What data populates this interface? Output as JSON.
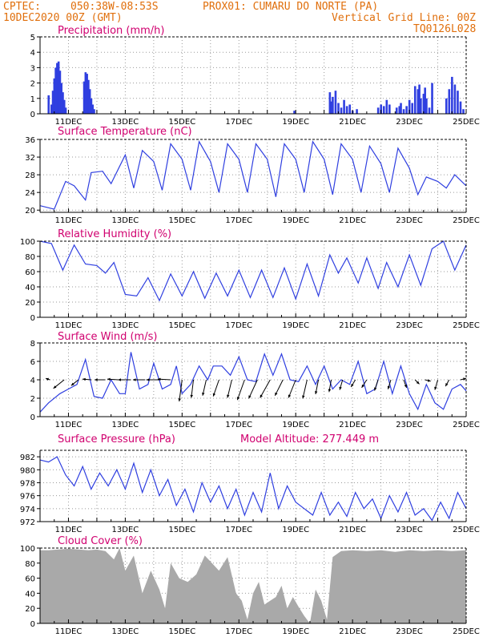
{
  "header": {
    "line1_left": "CPTEC:",
    "coords": "050:38W-08:53S",
    "station": "PROX01: CUMARU DO NORTE (PA)",
    "date": "10DEC2020 00Z (GMT)",
    "grid_note": "Vertical Grid Line: 00Z",
    "run_code": "TQ0126L028"
  },
  "colors": {
    "header_text": "#e06f0c",
    "title_text": "#d0006f",
    "series_line": "#2f3fe0",
    "cloud_fill": "#a9a9a9"
  },
  "x_axis": {
    "start_label_day": 10,
    "days": 15,
    "tick_labels": [
      "11DEC",
      "13DEC",
      "15DEC",
      "17DEC",
      "19DEC",
      "21DEC",
      "23DEC",
      "25DEC"
    ],
    "tick_days": [
      11,
      13,
      15,
      17,
      19,
      21,
      23,
      25
    ]
  },
  "chart_data": [
    {
      "type": "bar",
      "title": "Precipitation (mm/h)",
      "ylim": [
        0,
        5
      ],
      "yticks": [
        0,
        1,
        2,
        3,
        4,
        5
      ],
      "x": [
        10.3,
        10.4,
        10.45,
        10.5,
        10.55,
        10.6,
        10.65,
        10.7,
        10.75,
        10.8,
        10.85,
        10.9,
        11.55,
        11.6,
        11.65,
        11.7,
        11.75,
        11.8,
        11.85,
        11.9,
        18.95,
        20.2,
        20.25,
        20.3,
        20.4,
        20.5,
        20.6,
        20.7,
        20.8,
        20.9,
        21.0,
        21.15,
        21.9,
        22.0,
        22.1,
        22.2,
        22.3,
        22.55,
        22.65,
        22.7,
        22.8,
        22.9,
        23.0,
        23.1,
        23.2,
        23.3,
        23.35,
        23.4,
        23.5,
        23.55,
        23.6,
        23.7,
        23.8,
        24.3,
        24.4,
        24.5,
        24.6,
        24.7,
        24.8,
        24.9
      ],
      "values": [
        1.2,
        0.6,
        1.5,
        2.3,
        3.0,
        3.3,
        3.4,
        2.8,
        2.0,
        1.4,
        0.9,
        0.4,
        2.1,
        2.7,
        2.6,
        2.2,
        1.6,
        1.0,
        0.6,
        0.3,
        0.2,
        1.4,
        0.8,
        1.1,
        1.5,
        0.7,
        0.4,
        0.9,
        0.5,
        0.6,
        0.2,
        0.3,
        0.4,
        0.6,
        0.5,
        0.9,
        0.6,
        0.4,
        0.5,
        0.7,
        0.3,
        0.5,
        0.9,
        0.7,
        1.8,
        1.6,
        1.9,
        1.0,
        1.3,
        1.7,
        1.0,
        0.4,
        2.0,
        1.0,
        1.6,
        2.4,
        1.9,
        1.5,
        0.8,
        0.3
      ]
    },
    {
      "type": "line",
      "title": "Surface Temperature (nC)",
      "ylim": [
        19.5,
        36
      ],
      "yticks": [
        20,
        24,
        28,
        32,
        36
      ],
      "x": [
        10.0,
        10.5,
        10.9,
        11.2,
        11.6,
        11.8,
        12.2,
        12.5,
        13.0,
        13.3,
        13.6,
        14.0,
        14.3,
        14.6,
        15.0,
        15.3,
        15.6,
        16.0,
        16.3,
        16.6,
        17.0,
        17.3,
        17.6,
        18.0,
        18.3,
        18.6,
        19.0,
        19.3,
        19.6,
        20.0,
        20.3,
        20.6,
        21.0,
        21.3,
        21.6,
        22.0,
        22.3,
        22.6,
        23.0,
        23.3,
        23.6,
        24.0,
        24.3,
        24.6,
        25.0
      ],
      "values": [
        21,
        20.2,
        26.5,
        25.5,
        22.3,
        28.5,
        28.8,
        26,
        32.5,
        25,
        33.5,
        31,
        24.5,
        35,
        31.5,
        24.5,
        35.5,
        31,
        24,
        35,
        31.5,
        24,
        35,
        31.5,
        23,
        35,
        31.5,
        24,
        35.5,
        31.5,
        23.5,
        35,
        31.5,
        24,
        34.5,
        30.5,
        24,
        34,
        29.5,
        23.5,
        27.5,
        26.5,
        25,
        28,
        25.5
      ]
    },
    {
      "type": "line",
      "title": "Relative Humidity (%)",
      "ylim": [
        0,
        100
      ],
      "yticks": [
        0,
        20,
        40,
        60,
        80,
        100
      ],
      "x": [
        10.0,
        10.4,
        10.8,
        11.2,
        11.6,
        12.0,
        12.3,
        12.6,
        13.0,
        13.4,
        13.8,
        14.2,
        14.6,
        15.0,
        15.4,
        15.8,
        16.2,
        16.6,
        17.0,
        17.4,
        17.8,
        18.2,
        18.6,
        19.0,
        19.4,
        19.8,
        20.2,
        20.5,
        20.8,
        21.2,
        21.5,
        21.9,
        22.2,
        22.6,
        23.0,
        23.4,
        23.8,
        24.2,
        24.6,
        25.0
      ],
      "values": [
        100,
        97,
        62,
        95,
        70,
        68,
        58,
        72,
        30,
        28,
        52,
        22,
        57,
        28,
        60,
        25,
        58,
        28,
        62,
        26,
        62,
        26,
        65,
        24,
        70,
        28,
        82,
        58,
        78,
        45,
        78,
        38,
        72,
        40,
        82,
        42,
        90,
        100,
        62,
        95
      ]
    },
    {
      "type": "line",
      "title": "Surface Wind (m/s)",
      "ylim": [
        0,
        8
      ],
      "yticks": [
        0,
        2,
        4,
        6,
        8
      ],
      "x": [
        10.0,
        10.3,
        10.7,
        11.0,
        11.3,
        11.6,
        11.9,
        12.2,
        12.5,
        12.8,
        13.0,
        13.2,
        13.5,
        13.8,
        14.0,
        14.3,
        14.6,
        14.8,
        15.0,
        15.3,
        15.6,
        15.9,
        16.1,
        16.4,
        16.7,
        17.0,
        17.3,
        17.6,
        17.9,
        18.2,
        18.5,
        18.8,
        19.1,
        19.4,
        19.7,
        20.0,
        20.3,
        20.6,
        20.9,
        21.2,
        21.5,
        21.8,
        22.1,
        22.4,
        22.7,
        23.0,
        23.3,
        23.6,
        23.9,
        24.2,
        24.5,
        24.8,
        25.0
      ],
      "values": [
        0.5,
        1.5,
        2.5,
        3.0,
        3.5,
        6.2,
        2.2,
        2.0,
        4.0,
        2.5,
        2.5,
        7.0,
        3.0,
        3.5,
        5.8,
        3.0,
        3.5,
        5.5,
        2.5,
        3.5,
        5.5,
        4.0,
        5.5,
        5.5,
        4.5,
        6.5,
        4.0,
        3.8,
        6.8,
        4.5,
        6.8,
        4.0,
        3.8,
        5.5,
        3.5,
        5.5,
        3.0,
        4.0,
        3.5,
        6.0,
        2.5,
        3.0,
        6.0,
        2.5,
        5.5,
        2.5,
        0.8,
        3.5,
        1.5,
        0.8,
        3.0,
        3.5,
        2.8
      ]
    },
    {
      "type": "line",
      "title": "Surface Pressure (hPa)",
      "annotation": "Model Altitude: 277.449 m",
      "ylim": [
        972,
        983
      ],
      "yticks": [
        972,
        974,
        976,
        978,
        980,
        982
      ],
      "x": [
        10.0,
        10.3,
        10.6,
        10.9,
        11.2,
        11.5,
        11.8,
        12.1,
        12.4,
        12.7,
        13.0,
        13.3,
        13.6,
        13.9,
        14.2,
        14.5,
        14.8,
        15.1,
        15.4,
        15.7,
        16.0,
        16.3,
        16.6,
        16.9,
        17.2,
        17.5,
        17.8,
        18.1,
        18.4,
        18.7,
        19.0,
        19.3,
        19.6,
        19.9,
        20.2,
        20.5,
        20.8,
        21.1,
        21.4,
        21.7,
        22.0,
        22.3,
        22.6,
        22.9,
        23.2,
        23.5,
        23.8,
        24.1,
        24.4,
        24.7,
        25.0
      ],
      "values": [
        981.5,
        981.2,
        982,
        979.2,
        977.5,
        980.5,
        977,
        979.5,
        977.5,
        980,
        977,
        981,
        976.5,
        980,
        976,
        978.5,
        974.5,
        977,
        973.5,
        978,
        975,
        977.5,
        974,
        977,
        973,
        976.5,
        973.5,
        979.5,
        974,
        977.5,
        975,
        974,
        973,
        976.5,
        973,
        975,
        972.8,
        976.5,
        974,
        975.5,
        972.5,
        976,
        973.5,
        976.5,
        973,
        974,
        972.2,
        975,
        972.5,
        976.5,
        974
      ]
    },
    {
      "type": "area",
      "title": "Cloud Cover (%)",
      "ylim": [
        0,
        100
      ],
      "yticks": [
        0,
        20,
        40,
        60,
        80,
        100
      ],
      "x": [
        10.0,
        10.3,
        10.6,
        11.0,
        11.4,
        11.7,
        12.0,
        12.3,
        12.6,
        12.8,
        13.0,
        13.3,
        13.6,
        13.9,
        14.2,
        14.4,
        14.6,
        14.9,
        15.2,
        15.5,
        15.8,
        16.0,
        16.3,
        16.6,
        16.9,
        17.1,
        17.3,
        17.5,
        17.7,
        17.9,
        18.1,
        18.3,
        18.5,
        18.7,
        18.9,
        19.1,
        19.3,
        19.5,
        19.7,
        19.9,
        20.1,
        20.3,
        20.6,
        21.0,
        21.5,
        22.0,
        22.5,
        23.0,
        23.5,
        24.0,
        24.5,
        25.0
      ],
      "values": [
        97,
        97,
        98,
        99,
        98,
        97,
        98,
        96,
        85,
        100,
        70,
        90,
        40,
        70,
        45,
        20,
        80,
        60,
        55,
        65,
        90,
        82,
        70,
        88,
        40,
        30,
        5,
        40,
        55,
        25,
        30,
        35,
        50,
        20,
        35,
        22,
        10,
        0,
        45,
        30,
        5,
        88,
        96,
        97,
        96,
        97,
        95,
        97,
        96,
        97,
        96,
        97
      ]
    }
  ],
  "wind_vectors": {
    "x": [
      10.35,
      10.85,
      11.35,
      11.8,
      12.3,
      12.75,
      13.2,
      13.7,
      14.2,
      14.6,
      15.0,
      15.4,
      15.85,
      16.3,
      16.75,
      17.2,
      17.65,
      18.1,
      18.55,
      19.0,
      19.4,
      19.8,
      20.25,
      20.65,
      21.1,
      21.5,
      21.9,
      22.35,
      22.8,
      23.2,
      23.55,
      24.0,
      24.4,
      24.8
    ],
    "u": [
      -0.6,
      -1.5,
      -1.0,
      -1.2,
      -1.5,
      -1.5,
      -1.8,
      -1.7,
      -1.8,
      -1.8,
      -0.4,
      -0.3,
      -0.5,
      -0.8,
      -0.6,
      -1.0,
      -1.2,
      -1.4,
      -1.1,
      -1.0,
      -0.6,
      -0.4,
      -0.3,
      -0.4,
      -0.6,
      -0.7,
      -0.5,
      -0.4,
      0.4,
      0.6,
      0.8,
      -0.4,
      -0.5,
      0.8
    ],
    "v": [
      0.2,
      -1.2,
      -0.8,
      0.1,
      0.0,
      0.1,
      0.0,
      0.0,
      0.0,
      0.1,
      -3.0,
      -2.5,
      -2.2,
      -2.3,
      -2.5,
      -2.8,
      -2.6,
      -2.5,
      -2.2,
      -2.5,
      -2.6,
      -2.0,
      -1.7,
      -1.4,
      -1.0,
      -1.1,
      -1.5,
      -1.3,
      -1.1,
      -0.6,
      -0.2,
      -1.4,
      -0.9,
      0.2
    ]
  }
}
